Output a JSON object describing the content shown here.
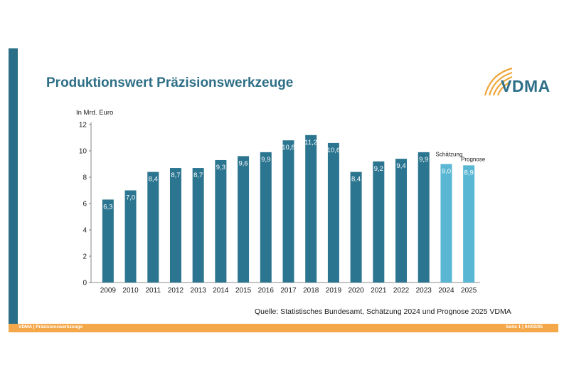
{
  "slide": {
    "title": "Produktionswert Präzisionswerkzeuge",
    "logo_text": "VDMA",
    "source": "Quelle: Statistisches Bundesamt, Schätzung 2024 und Prognose 2025 VDMA",
    "footer_left_a": "VDMA",
    "footer_left_sep": " | ",
    "footer_left_b": "Präzisionswerkzeuge",
    "footer_right_a": "Seite 1",
    "footer_right_sep": " | ",
    "footer_right_b": "04/02/25"
  },
  "colors": {
    "bar": "#2c7590",
    "bar_estimate": "#5ab7d3",
    "title": "#2d6e86",
    "footer": "#f5a84a",
    "logo_arc": "#f0a63a"
  },
  "chart_data": {
    "type": "bar",
    "ylabel": "In Mrd. Euro",
    "ylim": [
      0,
      12
    ],
    "yticks": [
      "0",
      "2",
      "4",
      "6",
      "8",
      "10",
      "12"
    ],
    "categories": [
      "2009",
      "2010",
      "2011",
      "2012",
      "2013",
      "2014",
      "2015",
      "2016",
      "2017",
      "2018",
      "2019",
      "2020",
      "2021",
      "2022",
      "2023",
      "2024",
      "2025"
    ],
    "values": [
      6.3,
      7.0,
      8.4,
      8.7,
      8.7,
      9.3,
      9.6,
      9.9,
      10.8,
      11.2,
      10.6,
      8.4,
      9.2,
      9.4,
      9.9,
      9.0,
      8.9
    ],
    "value_labels": [
      "6,3",
      "7,0",
      "8,4",
      "8,7",
      "8,7",
      "9,3",
      "9,6",
      "9,9",
      "10,8",
      "11,2",
      "10,6",
      "8,4",
      "9,2",
      "9,4",
      "9,9",
      "9,0",
      "8,9"
    ],
    "highlight": [
      "",
      "",
      "",
      "",
      "",
      "",
      "",
      "",
      "",
      "",
      "",
      "",
      "",
      "",
      "",
      "Schätzung",
      "Prognose"
    ],
    "grid": false,
    "legend": "none"
  }
}
